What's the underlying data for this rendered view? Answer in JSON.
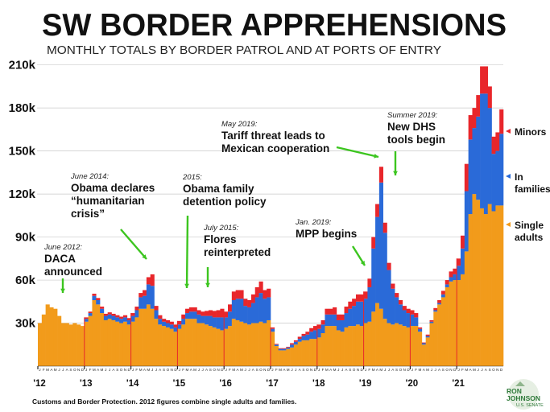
{
  "chart_data": {
    "type": "bar",
    "stacked": true,
    "title": "SW BORDER APPREHENSIONS",
    "subtitle": "MONTHLY TOTALS BY BORDER PATROL AND AT PORTS OF ENTRY",
    "source_note": "Customs and Border Protection. 2012 figures combine single adults and families.",
    "logo": "RON JOHNSON U.S. SENATE",
    "ylim": [
      0,
      215000
    ],
    "y_ticks": [
      {
        "value": 30000,
        "label": "30k"
      },
      {
        "value": 60000,
        "label": "60k"
      },
      {
        "value": 90000,
        "label": "90k"
      },
      {
        "value": 120000,
        "label": "120k"
      },
      {
        "value": 150000,
        "label": "150k"
      },
      {
        "value": 180000,
        "label": "180k"
      },
      {
        "value": 210000,
        "label": "210k"
      }
    ],
    "year_labels": [
      "'12",
      "'13",
      "'14",
      "'15",
      "'16",
      "'17",
      "'18",
      "'19",
      "'20",
      "'21"
    ],
    "month_letters": [
      "J",
      "F",
      "M",
      "A",
      "M",
      "J",
      "J",
      "A",
      "S",
      "O",
      "N",
      "D"
    ],
    "legend": [
      {
        "name": "Minors",
        "color": "#e8262b"
      },
      {
        "name": "In families",
        "color": "#2a6ad8"
      },
      {
        "name": "Single adults",
        "color": "#f29b1b"
      }
    ],
    "colors": {
      "single_adults": "#f29b1b",
      "families": "#2a6ad8",
      "minors": "#e8262b"
    },
    "x_start": "2012-01",
    "series": [
      {
        "name": "Single adults",
        "values": [
          30000,
          36000,
          43000,
          41000,
          40000,
          35000,
          30000,
          30000,
          29000,
          30000,
          29000,
          28000,
          31000,
          35000,
          46000,
          43000,
          37000,
          32000,
          33000,
          32000,
          31000,
          30000,
          31000,
          29000,
          31000,
          34000,
          40000,
          40000,
          43000,
          40000,
          33000,
          29000,
          28000,
          27000,
          26000,
          24000,
          26000,
          29000,
          33000,
          33000,
          33000,
          30000,
          30000,
          29000,
          28000,
          27000,
          26000,
          25000,
          26000,
          28000,
          33000,
          32000,
          31000,
          30000,
          29000,
          30000,
          30000,
          31000,
          30000,
          32000,
          24000,
          14000,
          11000,
          11000,
          12000,
          13000,
          15000,
          17000,
          18000,
          18000,
          19000,
          19000,
          20000,
          23000,
          28000,
          28000,
          28000,
          25000,
          24000,
          27000,
          28000,
          28000,
          29000,
          28000,
          30000,
          31000,
          38000,
          44000,
          40000,
          33000,
          30000,
          29000,
          30000,
          29000,
          28000,
          27000,
          28000,
          28000,
          24000,
          15000,
          20000,
          30000,
          38000,
          43000,
          48000,
          55000,
          59000,
          60000,
          60000,
          64000,
          80000,
          106000,
          120000,
          116000,
          110000,
          106000,
          113000,
          108000,
          112000,
          112000
        ]
      },
      {
        "name": "In families",
        "values": [
          0,
          0,
          0,
          0,
          0,
          0,
          0,
          0,
          0,
          0,
          0,
          0,
          2000,
          2000,
          3000,
          3000,
          3000,
          3000,
          3000,
          3000,
          3000,
          3000,
          3000,
          3000,
          4000,
          5000,
          8000,
          9000,
          14000,
          16000,
          6000,
          4000,
          3000,
          3000,
          3000,
          3000,
          3000,
          4000,
          4000,
          5000,
          5000,
          6000,
          5000,
          6000,
          7000,
          7000,
          8000,
          9000,
          8000,
          10000,
          13000,
          15000,
          16000,
          12000,
          12000,
          14000,
          18000,
          20000,
          17000,
          16000,
          2000,
          1000,
          1000,
          1000,
          1000,
          2000,
          2000,
          2000,
          3000,
          4000,
          5000,
          6000,
          6000,
          6000,
          8000,
          8000,
          8000,
          7000,
          8000,
          10000,
          12000,
          14000,
          16000,
          17000,
          17000,
          24000,
          44000,
          60000,
          88000,
          60000,
          37000,
          25000,
          18000,
          14000,
          11000,
          10000,
          8000,
          6000,
          2000,
          1000,
          1000,
          1000,
          1000,
          1000,
          2000,
          2000,
          3000,
          4000,
          10000,
          18000,
          42000,
          52000,
          46000,
          58000,
          80000,
          84000,
          67000,
          40000,
          38000,
          50000
        ]
      },
      {
        "name": "Minors",
        "values": [
          0,
          0,
          0,
          0,
          0,
          0,
          0,
          0,
          0,
          0,
          0,
          0,
          1000,
          1000,
          1500,
          1500,
          1500,
          1500,
          1500,
          1500,
          1500,
          1500,
          1500,
          1500,
          2000,
          2500,
          3000,
          4000,
          5000,
          8000,
          3000,
          2500,
          2000,
          2000,
          2000,
          2000,
          2500,
          3000,
          3000,
          3000,
          3000,
          3000,
          3000,
          3500,
          4000,
          4500,
          5000,
          6000,
          4000,
          5000,
          6000,
          6000,
          6000,
          5000,
          5000,
          6000,
          7000,
          8000,
          6000,
          6000,
          1000,
          500,
          500,
          500,
          500,
          1000,
          1000,
          1500,
          1500,
          2000,
          2500,
          3000,
          3000,
          3000,
          4000,
          4000,
          5000,
          4000,
          4000,
          4500,
          5000,
          5000,
          5000,
          5000,
          5000,
          6000,
          8000,
          9000,
          11000,
          7000,
          5000,
          3500,
          3000,
          3000,
          3000,
          3000,
          3000,
          3000,
          1000,
          500,
          1000,
          1000,
          1500,
          2000,
          2500,
          3000,
          4000,
          4000,
          5000,
          9000,
          19000,
          17000,
          14000,
          15000,
          19000,
          19000,
          15000,
          12000,
          13000,
          17000
        ]
      }
    ],
    "annotations": [
      {
        "italic": "June 2012:",
        "text": [
          "DACA",
          "announced"
        ]
      },
      {
        "italic": "June 2014:",
        "text": [
          "Obama declares",
          "“humanitarian",
          "crisis”"
        ]
      },
      {
        "italic": "2015:",
        "text": [
          "Obama family",
          "detention policy"
        ]
      },
      {
        "italic": "July 2015:",
        "text": [
          "Flores",
          "reinterpreted"
        ]
      },
      {
        "italic": "Jan. 2019:",
        "text": [
          "MPP begins"
        ]
      },
      {
        "italic": "May 2019:",
        "text": [
          "Tariff threat leads to",
          "Mexican cooperation"
        ]
      },
      {
        "italic": "Summer 2019:",
        "text": [
          "New DHS",
          "tools begin"
        ]
      }
    ]
  }
}
